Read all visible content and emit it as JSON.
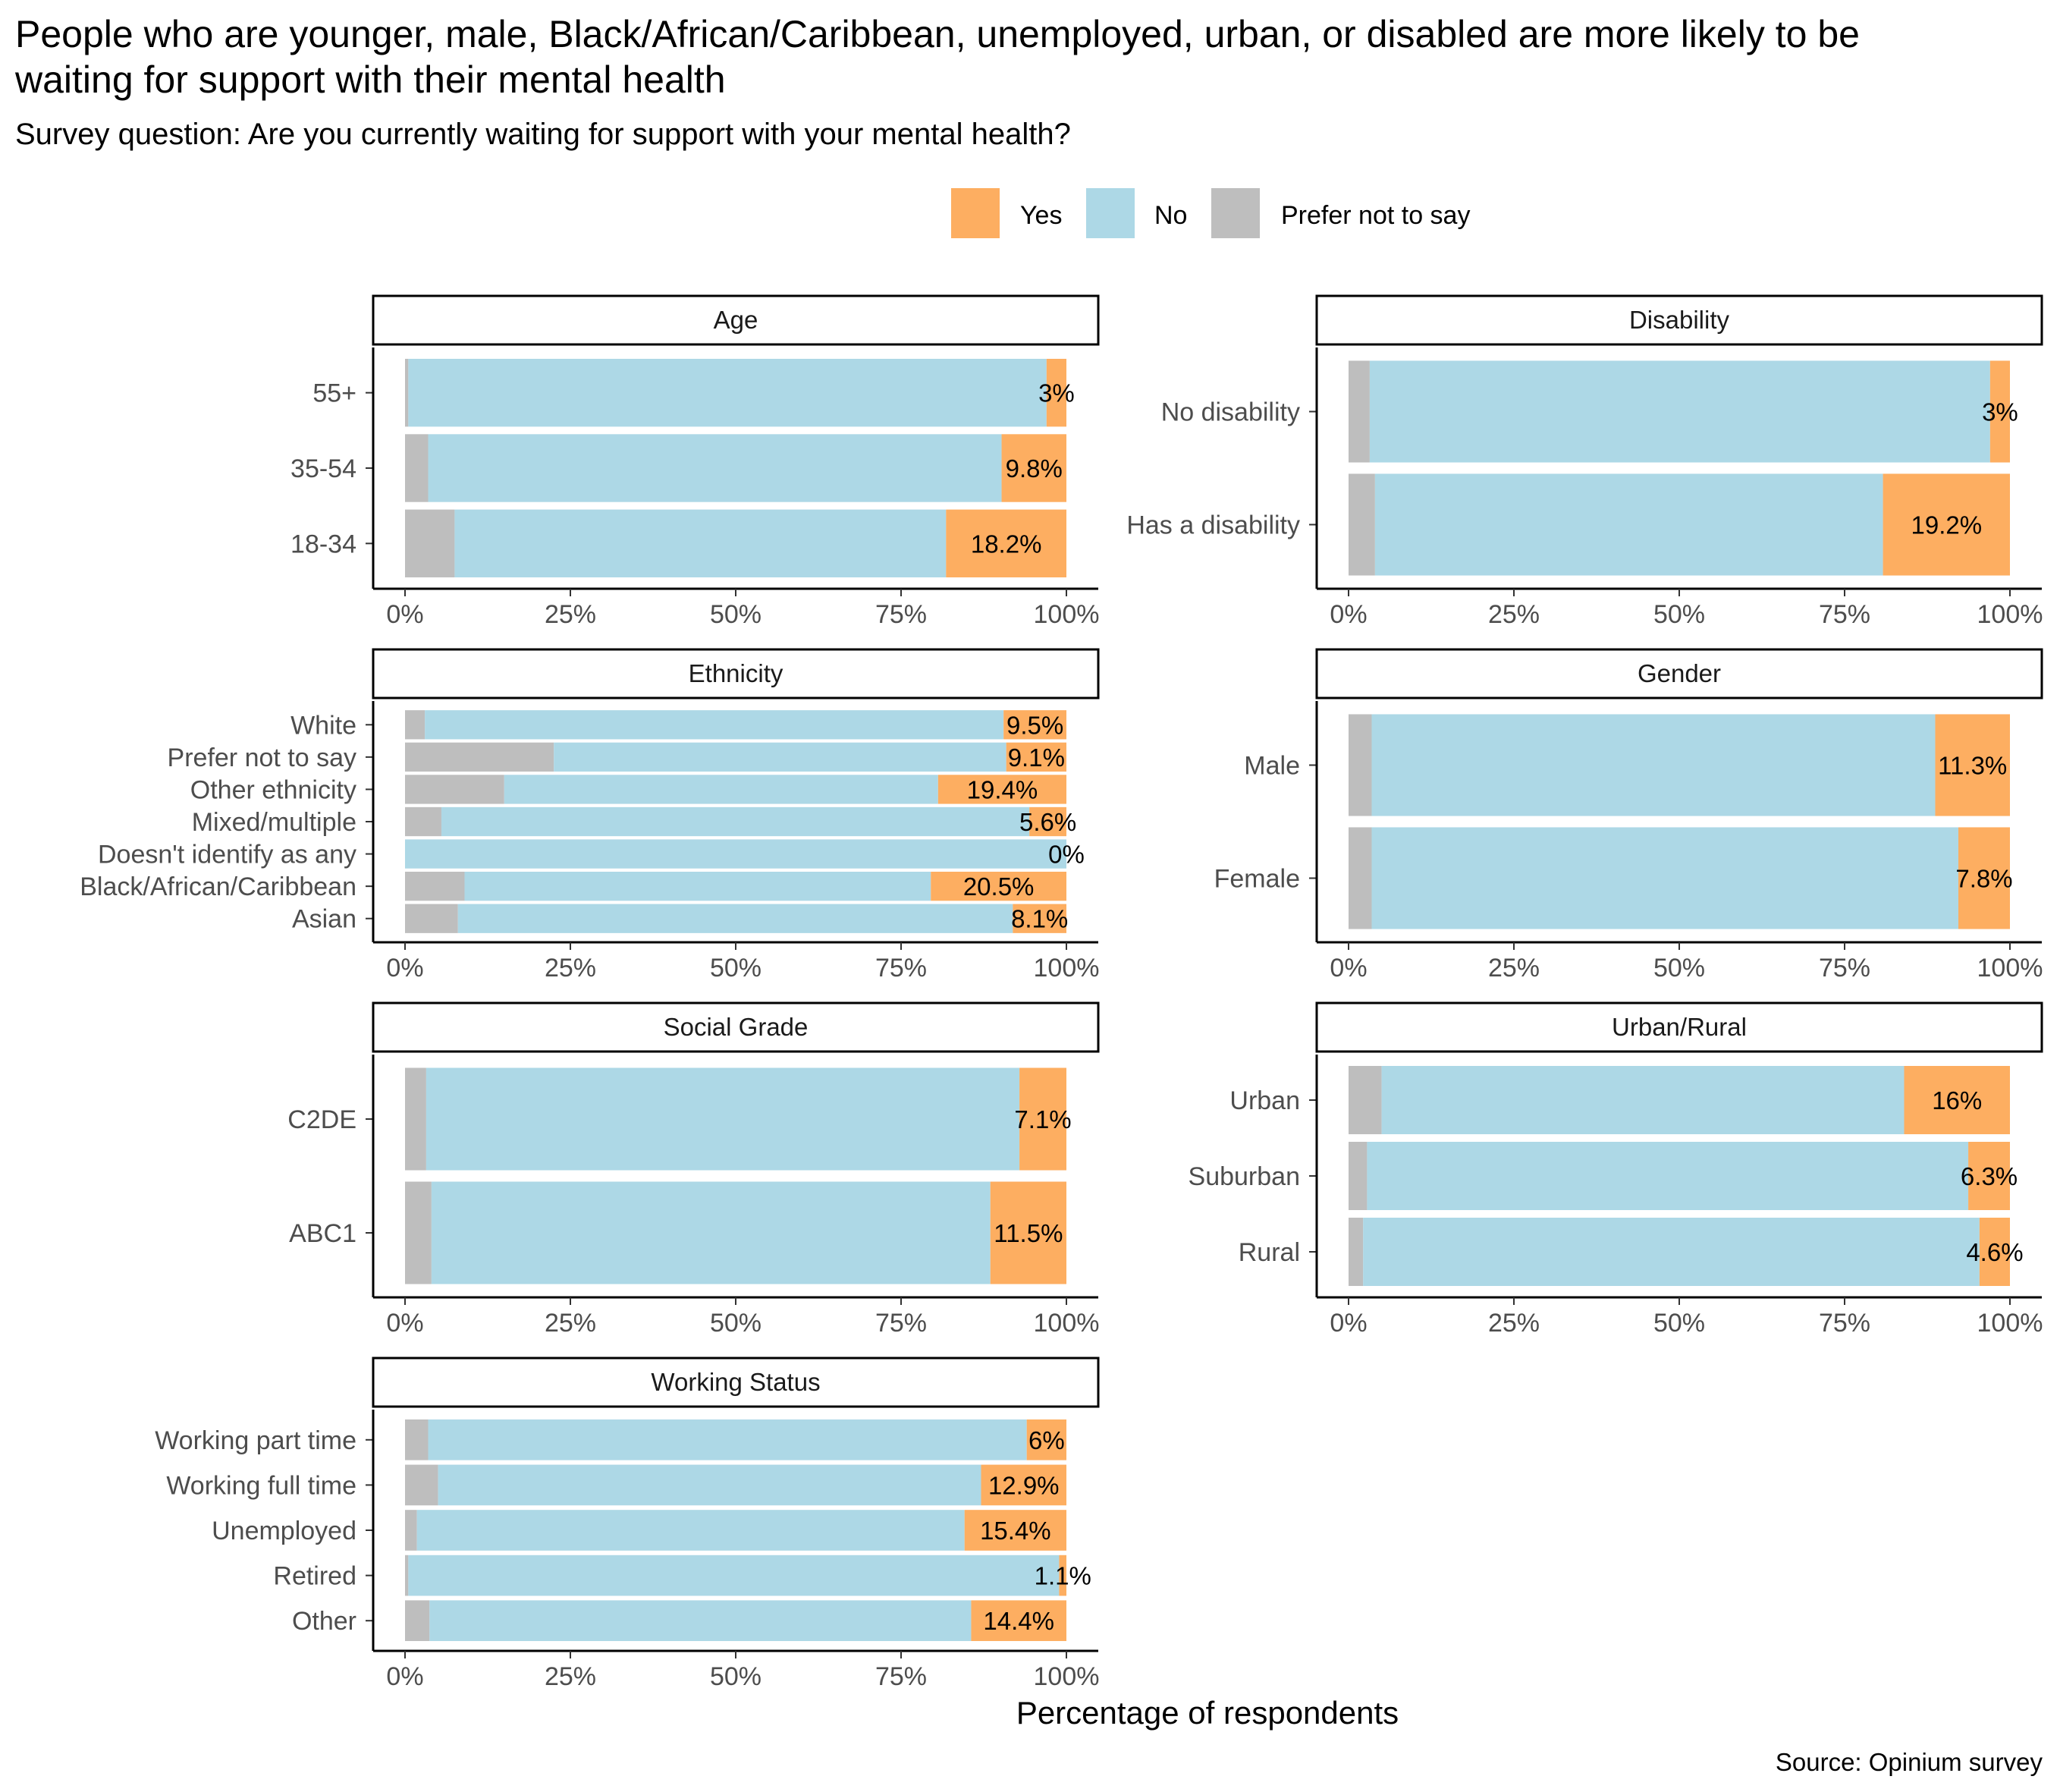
{
  "title_lines": [
    "People who are younger, male, Black/African/Caribbean, unemployed, urban, or disabled are more likely to be",
    "waiting for support with their mental health"
  ],
  "subtitle": "Survey question: Are you currently waiting for support with your mental health?",
  "legend": [
    {
      "label": "Yes",
      "color": "#FDAE61"
    },
    {
      "label": "No",
      "color": "#ADD8E6"
    },
    {
      "label": "Prefer not to say",
      "color": "#BEBEBE"
    }
  ],
  "x_axis_title": "Percentage of respondents",
  "caption": "Source: Opinium survey",
  "colors": {
    "yes": "#FDAE61",
    "no": "#ADD8E6",
    "prefer": "#BEBEBE"
  },
  "chart_data": {
    "type": "bar",
    "orientation": "horizontal",
    "stacked": "percent",
    "x_ticks": [
      "0%",
      "25%",
      "50%",
      "75%",
      "100%"
    ],
    "xlim": [
      0,
      100
    ],
    "legend_position": "top",
    "grid": false,
    "panels": [
      {
        "facet": "Age",
        "categories": [
          "55+",
          "35-54",
          "18-34"
        ],
        "series": [
          {
            "name": "Prefer not to say",
            "values": [
              0.5,
              3.5,
              7.5
            ]
          },
          {
            "name": "No",
            "values": [
              96.5,
              86.7,
              74.3
            ]
          },
          {
            "name": "Yes",
            "values": [
              3.0,
              9.8,
              18.2
            ]
          }
        ],
        "labels": [
          "3%",
          "9.8%",
          "18.2%"
        ]
      },
      {
        "facet": "Disability",
        "categories": [
          "No disability",
          "Has a disability"
        ],
        "series": [
          {
            "name": "Prefer not to say",
            "values": [
              3.2,
              4.0
            ]
          },
          {
            "name": "No",
            "values": [
              93.8,
              76.8
            ]
          },
          {
            "name": "Yes",
            "values": [
              3.0,
              19.2
            ]
          }
        ],
        "labels": [
          "3%",
          "19.2%"
        ]
      },
      {
        "facet": "Ethnicity",
        "categories": [
          "White",
          "Prefer not to say",
          "Other ethnicity",
          "Mixed/multiple",
          "Doesn't identify as any",
          "Black/African/Caribbean",
          "Asian"
        ],
        "series": [
          {
            "name": "Prefer not to say",
            "values": [
              3.0,
              22.5,
              15.0,
              5.5,
              0.0,
              9.0,
              8.0
            ]
          },
          {
            "name": "No",
            "values": [
              87.5,
              68.4,
              65.6,
              88.9,
              100.0,
              70.5,
              83.9
            ]
          },
          {
            "name": "Yes",
            "values": [
              9.5,
              9.1,
              19.4,
              5.6,
              0.0,
              20.5,
              8.1
            ]
          }
        ],
        "labels": [
          "9.5%",
          "9.1%",
          "19.4%",
          "5.6%",
          "0%",
          "20.5%",
          "8.1%"
        ]
      },
      {
        "facet": "Gender",
        "categories": [
          "Male",
          "Female"
        ],
        "series": [
          {
            "name": "Prefer not to say",
            "values": [
              3.5,
              3.5
            ]
          },
          {
            "name": "No",
            "values": [
              85.2,
              88.7
            ]
          },
          {
            "name": "Yes",
            "values": [
              11.3,
              7.8
            ]
          }
        ],
        "labels": [
          "11.3%",
          "7.8%"
        ]
      },
      {
        "facet": "Social Grade",
        "categories": [
          "C2DE",
          "ABC1"
        ],
        "series": [
          {
            "name": "Prefer not to say",
            "values": [
              3.2,
              4.0
            ]
          },
          {
            "name": "No",
            "values": [
              89.7,
              84.5
            ]
          },
          {
            "name": "Yes",
            "values": [
              7.1,
              11.5
            ]
          }
        ],
        "labels": [
          "7.1%",
          "11.5%"
        ]
      },
      {
        "facet": "Urban/Rural",
        "categories": [
          "Urban",
          "Suburban",
          "Rural"
        ],
        "series": [
          {
            "name": "Prefer not to say",
            "values": [
              5.0,
              2.8,
              2.2
            ]
          },
          {
            "name": "No",
            "values": [
              79.0,
              90.9,
              93.2
            ]
          },
          {
            "name": "Yes",
            "values": [
              16.0,
              6.3,
              4.6
            ]
          }
        ],
        "labels": [
          "16%",
          "6.3%",
          "4.6%"
        ]
      },
      {
        "facet": "Working Status",
        "categories": [
          "Working part time",
          "Working full time",
          "Unemployed",
          "Retired",
          "Other"
        ],
        "series": [
          {
            "name": "Prefer not to say",
            "values": [
              3.5,
              5.0,
              1.8,
              0.5,
              3.7
            ]
          },
          {
            "name": "No",
            "values": [
              90.5,
              82.1,
              82.8,
              98.4,
              81.9
            ]
          },
          {
            "name": "Yes",
            "values": [
              6.0,
              12.9,
              15.4,
              1.1,
              14.4
            ]
          }
        ],
        "labels": [
          "6%",
          "12.9%",
          "15.4%",
          "1.1%",
          "14.4%"
        ]
      }
    ]
  }
}
